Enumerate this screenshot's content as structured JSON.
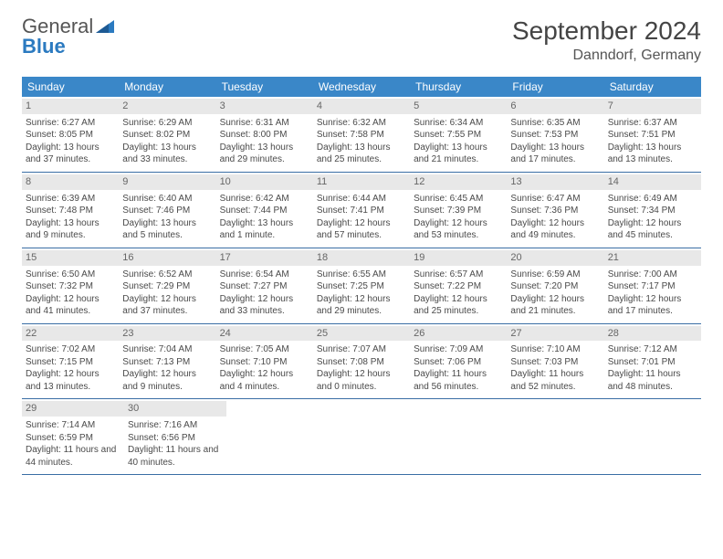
{
  "brand": {
    "word1": "General",
    "word2": "Blue",
    "color_gray": "#6b6b6b",
    "color_blue": "#2b7ac0"
  },
  "title": "September 2024",
  "location": "Danndorf, Germany",
  "colors": {
    "header_bg": "#3a87c8",
    "header_text": "#ffffff",
    "daynum_bg": "#e8e8e8",
    "week_border": "#3a6ea5",
    "body_text": "#4a4a4a"
  },
  "weekdays": [
    "Sunday",
    "Monday",
    "Tuesday",
    "Wednesday",
    "Thursday",
    "Friday",
    "Saturday"
  ],
  "weeks": [
    [
      {
        "n": "1",
        "sr": "6:27 AM",
        "ss": "8:05 PM",
        "dl": "13 hours and 37 minutes."
      },
      {
        "n": "2",
        "sr": "6:29 AM",
        "ss": "8:02 PM",
        "dl": "13 hours and 33 minutes."
      },
      {
        "n": "3",
        "sr": "6:31 AM",
        "ss": "8:00 PM",
        "dl": "13 hours and 29 minutes."
      },
      {
        "n": "4",
        "sr": "6:32 AM",
        "ss": "7:58 PM",
        "dl": "13 hours and 25 minutes."
      },
      {
        "n": "5",
        "sr": "6:34 AM",
        "ss": "7:55 PM",
        "dl": "13 hours and 21 minutes."
      },
      {
        "n": "6",
        "sr": "6:35 AM",
        "ss": "7:53 PM",
        "dl": "13 hours and 17 minutes."
      },
      {
        "n": "7",
        "sr": "6:37 AM",
        "ss": "7:51 PM",
        "dl": "13 hours and 13 minutes."
      }
    ],
    [
      {
        "n": "8",
        "sr": "6:39 AM",
        "ss": "7:48 PM",
        "dl": "13 hours and 9 minutes."
      },
      {
        "n": "9",
        "sr": "6:40 AM",
        "ss": "7:46 PM",
        "dl": "13 hours and 5 minutes."
      },
      {
        "n": "10",
        "sr": "6:42 AM",
        "ss": "7:44 PM",
        "dl": "13 hours and 1 minute."
      },
      {
        "n": "11",
        "sr": "6:44 AM",
        "ss": "7:41 PM",
        "dl": "12 hours and 57 minutes."
      },
      {
        "n": "12",
        "sr": "6:45 AM",
        "ss": "7:39 PM",
        "dl": "12 hours and 53 minutes."
      },
      {
        "n": "13",
        "sr": "6:47 AM",
        "ss": "7:36 PM",
        "dl": "12 hours and 49 minutes."
      },
      {
        "n": "14",
        "sr": "6:49 AM",
        "ss": "7:34 PM",
        "dl": "12 hours and 45 minutes."
      }
    ],
    [
      {
        "n": "15",
        "sr": "6:50 AM",
        "ss": "7:32 PM",
        "dl": "12 hours and 41 minutes."
      },
      {
        "n": "16",
        "sr": "6:52 AM",
        "ss": "7:29 PM",
        "dl": "12 hours and 37 minutes."
      },
      {
        "n": "17",
        "sr": "6:54 AM",
        "ss": "7:27 PM",
        "dl": "12 hours and 33 minutes."
      },
      {
        "n": "18",
        "sr": "6:55 AM",
        "ss": "7:25 PM",
        "dl": "12 hours and 29 minutes."
      },
      {
        "n": "19",
        "sr": "6:57 AM",
        "ss": "7:22 PM",
        "dl": "12 hours and 25 minutes."
      },
      {
        "n": "20",
        "sr": "6:59 AM",
        "ss": "7:20 PM",
        "dl": "12 hours and 21 minutes."
      },
      {
        "n": "21",
        "sr": "7:00 AM",
        "ss": "7:17 PM",
        "dl": "12 hours and 17 minutes."
      }
    ],
    [
      {
        "n": "22",
        "sr": "7:02 AM",
        "ss": "7:15 PM",
        "dl": "12 hours and 13 minutes."
      },
      {
        "n": "23",
        "sr": "7:04 AM",
        "ss": "7:13 PM",
        "dl": "12 hours and 9 minutes."
      },
      {
        "n": "24",
        "sr": "7:05 AM",
        "ss": "7:10 PM",
        "dl": "12 hours and 4 minutes."
      },
      {
        "n": "25",
        "sr": "7:07 AM",
        "ss": "7:08 PM",
        "dl": "12 hours and 0 minutes."
      },
      {
        "n": "26",
        "sr": "7:09 AM",
        "ss": "7:06 PM",
        "dl": "11 hours and 56 minutes."
      },
      {
        "n": "27",
        "sr": "7:10 AM",
        "ss": "7:03 PM",
        "dl": "11 hours and 52 minutes."
      },
      {
        "n": "28",
        "sr": "7:12 AM",
        "ss": "7:01 PM",
        "dl": "11 hours and 48 minutes."
      }
    ],
    [
      {
        "n": "29",
        "sr": "7:14 AM",
        "ss": "6:59 PM",
        "dl": "11 hours and 44 minutes."
      },
      {
        "n": "30",
        "sr": "7:16 AM",
        "ss": "6:56 PM",
        "dl": "11 hours and 40 minutes."
      },
      null,
      null,
      null,
      null,
      null
    ]
  ],
  "labels": {
    "sunrise": "Sunrise:",
    "sunset": "Sunset:",
    "daylight": "Daylight:"
  }
}
